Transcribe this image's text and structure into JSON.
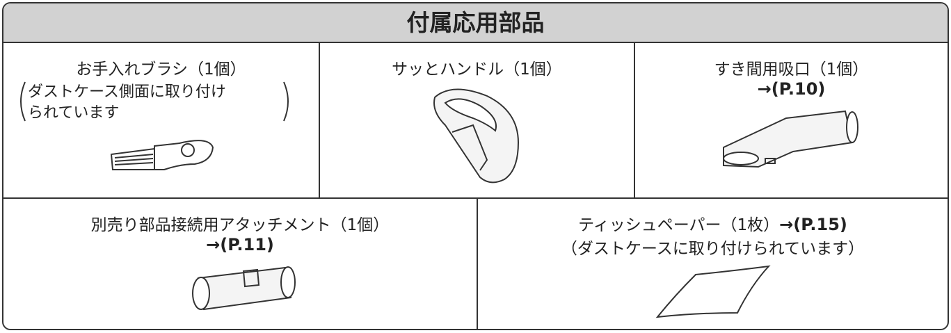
{
  "title": "付属応用部品",
  "items": [
    {
      "name": "お手入れブラシ（1個）",
      "note": [
        "ダストケース側面に取り付け",
        "られています"
      ]
    },
    {
      "name": "サッとハンドル（1個）"
    },
    {
      "name": "すき間用吸口（1個）",
      "ref": "→(P.10)"
    },
    {
      "name": "別売り部品接続用アタッチメント（1個）",
      "ref": "→(P.11)"
    },
    {
      "name": "ティッシュペーパー（1枚）",
      "ref": "→(P.15)",
      "note": [
        "（ダストケースに取り付けられています）"
      ]
    }
  ]
}
